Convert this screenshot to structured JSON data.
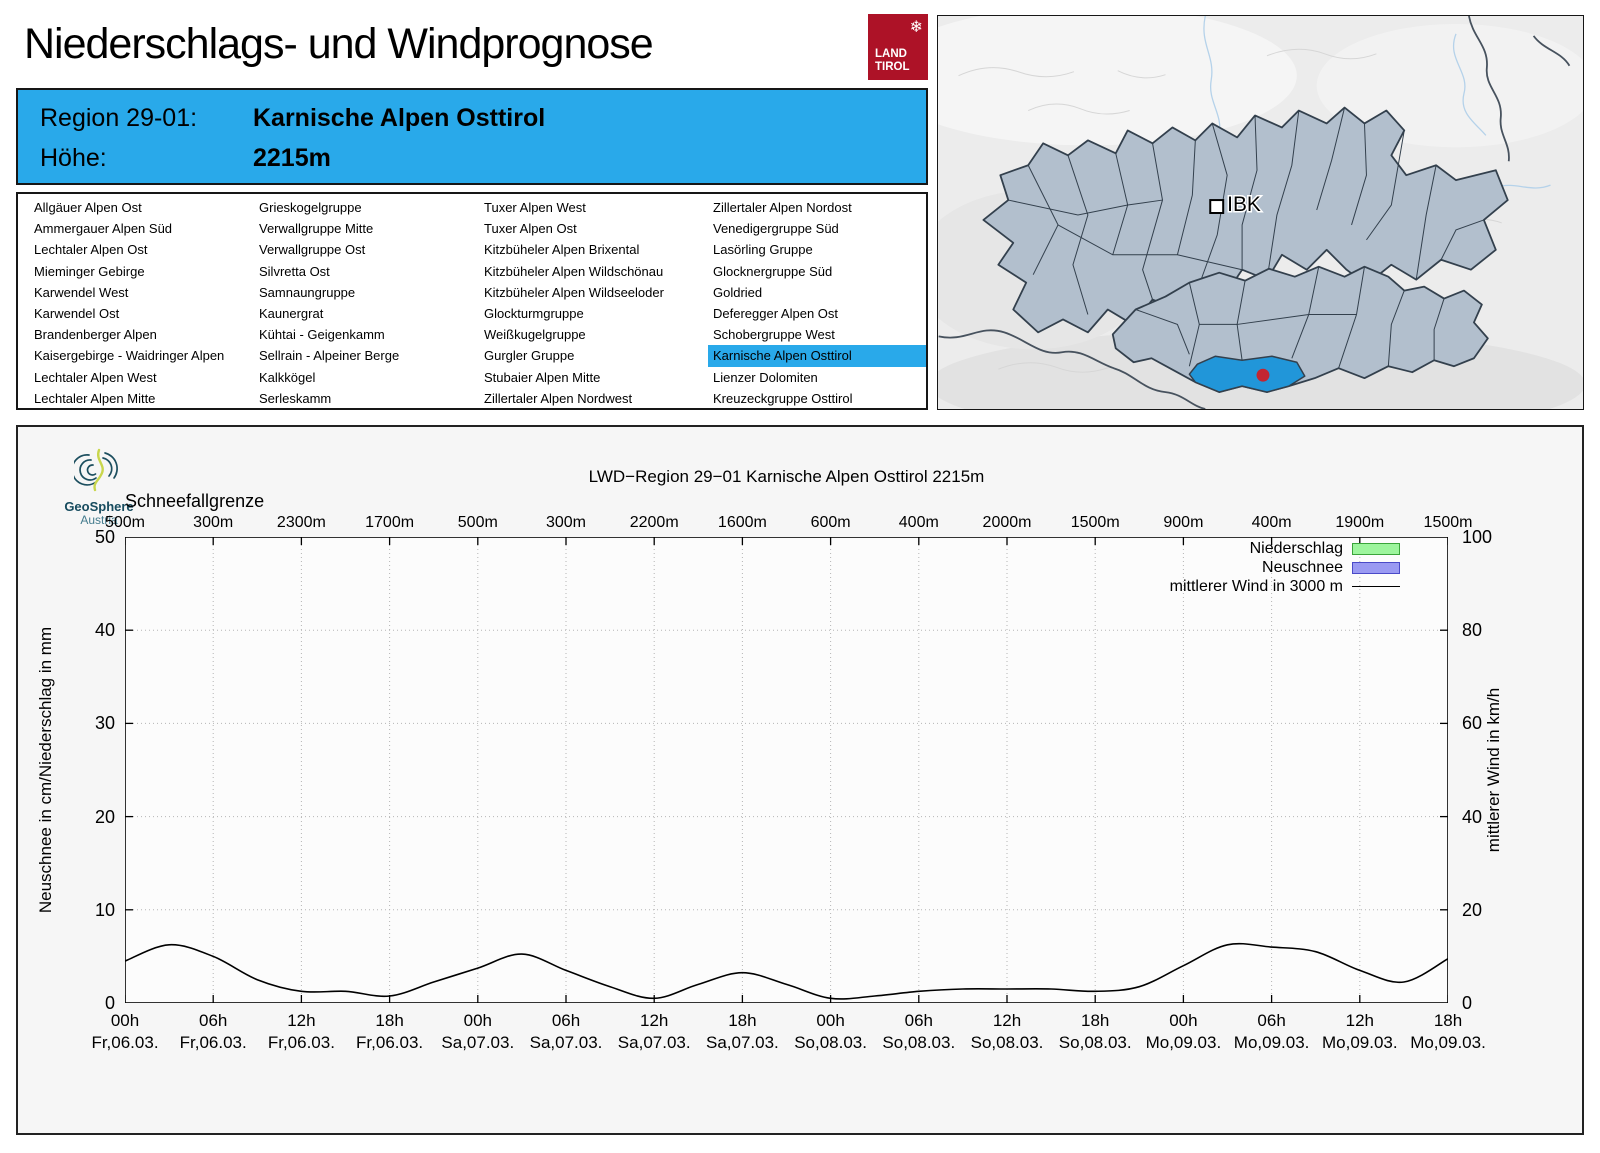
{
  "page": {
    "title": "Niederschlags- und Windprognose"
  },
  "land_tirol_logo": {
    "line1": "LAND",
    "line2": "TIROL",
    "snowflake_icon": "❄",
    "color": "#ad1227"
  },
  "region_header": {
    "region_label": "Region 29-01:",
    "region_name": "Karnische Alpen Osttirol",
    "altitude_label": "Höhe:",
    "altitude_value": "2215m",
    "background": "#29a9ea"
  },
  "region_list": {
    "selected": "Karnische Alpen Osttirol",
    "highlight_color": "#29a9ea",
    "columns": [
      [
        "Allgäuer Alpen Ost",
        "Ammergauer Alpen Süd",
        "Lechtaler Alpen Ost",
        "Mieminger Gebirge",
        "Karwendel West",
        "Karwendel Ost",
        "Brandenberger Alpen",
        "Kaisergebirge - Waidringer Alpen",
        "Lechtaler Alpen West",
        "Lechtaler Alpen Mitte"
      ],
      [
        "Grieskogelgruppe",
        "Verwallgruppe Mitte",
        "Verwallgruppe Ost",
        "Silvretta Ost",
        "Samnaungruppe",
        "Kaunergrat",
        "Kühtai - Geigenkamm",
        "Sellrain - Alpeiner Berge",
        "Kalkkögel",
        "Serleskamm"
      ],
      [
        "Tuxer Alpen West",
        "Tuxer Alpen Ost",
        "Kitzbüheler Alpen Brixental",
        "Kitzbüheler Alpen Wildschönau",
        "Kitzbüheler Alpen Wildseeloder",
        "Glockturmgruppe",
        "Weißkugelgruppe",
        "Gurgler Gruppe",
        "Stubaier Alpen Mitte",
        "Zillertaler Alpen Nordwest"
      ],
      [
        "Zillertaler Alpen Nordost",
        "Venedigergruppe Süd",
        "Lasörling Gruppe",
        "Glocknergruppe Süd",
        "Goldried",
        "Deferegger Alpen Ost",
        "Schobergruppe West",
        "Karnische Alpen Osttirol",
        "Lienzer Dolomiten",
        "Kreuzeckgruppe Osttirol"
      ]
    ]
  },
  "map": {
    "city_label": "IBK",
    "background": "#ececec",
    "region_fill": "#b2bfcd",
    "region_border": "#33404d",
    "selected_fill": "#2196d9",
    "marker_color": "#c32531"
  },
  "geosphere": {
    "name": "GeoSphere",
    "sub": "Austria"
  },
  "chart_data": {
    "type": "line",
    "title": "LWD−Region 29−01 Karnische Alpen Osttirol 2215m",
    "snowline": {
      "label": "Schneefallgrenze",
      "values": [
        "500m",
        "300m",
        "2300m",
        "1700m",
        "500m",
        "300m",
        "2200m",
        "1600m",
        "600m",
        "400m",
        "2000m",
        "1500m",
        "900m",
        "400m",
        "1900m",
        "1500m"
      ]
    },
    "x_ticks": {
      "times": [
        "00h",
        "06h",
        "12h",
        "18h",
        "00h",
        "06h",
        "12h",
        "18h",
        "00h",
        "06h",
        "12h",
        "18h",
        "00h",
        "06h",
        "12h",
        "18h"
      ],
      "dates": [
        "Fr,06.03.",
        "Fr,06.03.",
        "Fr,06.03.",
        "Fr,06.03.",
        "Sa,07.03.",
        "Sa,07.03.",
        "Sa,07.03.",
        "Sa,07.03.",
        "So,08.03.",
        "So,08.03.",
        "So,08.03.",
        "So,08.03.",
        "Mo,09.03.",
        "Mo,09.03.",
        "Mo,09.03.",
        "Mo,09.03."
      ]
    },
    "ylabel_left": "Neuschnee in cm/Niederschlag in mm",
    "ylabel_right": "mittlerer Wind in km/h",
    "ylim_left": [
      0,
      50
    ],
    "ylim_right": [
      0,
      100
    ],
    "yticks_left": [
      0,
      10,
      20,
      30,
      40,
      50
    ],
    "yticks_right": [
      0,
      20,
      40,
      60,
      80,
      100
    ],
    "grid": "dotted",
    "legend_position": "top-right",
    "legend": [
      {
        "label": "Niederschlag",
        "type": "box",
        "fill": "#9df59d",
        "border": "#3aa43a"
      },
      {
        "label": "Neuschnee",
        "type": "box",
        "fill": "#9a9af2",
        "border": "#4a4ac8"
      },
      {
        "label": "mittlerer Wind in 3000 m",
        "type": "line",
        "color": "#000000"
      }
    ],
    "series": [
      {
        "name": "Niederschlag",
        "unit": "mm",
        "axis": "left",
        "style": "bars",
        "values": [],
        "note": "no precipitation bars visible in forecast period"
      },
      {
        "name": "Neuschnee",
        "unit": "cm",
        "axis": "left",
        "style": "bars",
        "values": [],
        "note": "no new-snow bars visible in forecast period"
      },
      {
        "name": "mittlerer Wind in 3000 m",
        "unit": "km/h",
        "axis": "right",
        "style": "line",
        "x_hours": [
          0,
          3,
          6,
          9,
          12,
          15,
          18,
          21,
          24,
          27,
          30,
          33,
          36,
          39,
          42,
          45,
          48,
          51,
          54,
          57,
          60,
          63,
          66,
          69,
          72,
          75,
          78,
          81,
          84,
          87,
          90
        ],
        "values": [
          9,
          12.5,
          10,
          5,
          2.5,
          2.5,
          1.5,
          4.5,
          7.5,
          10.5,
          7,
          3.5,
          1,
          4,
          6.5,
          4,
          1,
          1.5,
          2.5,
          3,
          3,
          3,
          2.5,
          3.5,
          8,
          12.5,
          12,
          11,
          7,
          4.5,
          9.5
        ],
        "x_span_hours": 90,
        "x_start": "Fr,06.03. 00h",
        "x_end": "Mo,09.03. 18h"
      }
    ]
  }
}
